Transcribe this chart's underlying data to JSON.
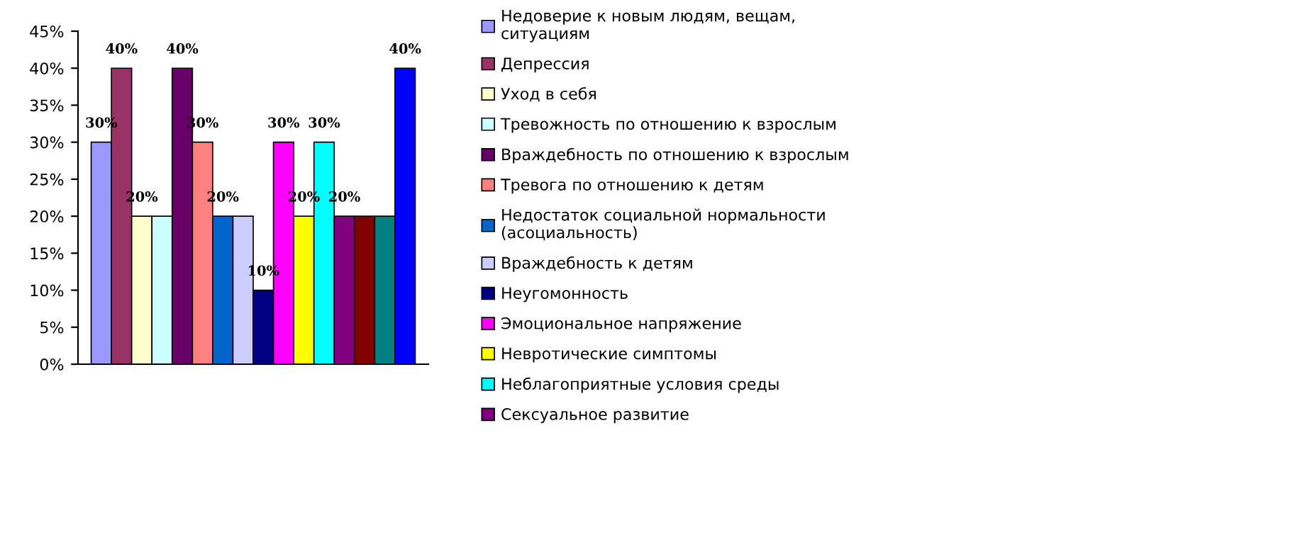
{
  "chart_data": {
    "type": "bar",
    "categories": [
      null
    ],
    "ylim": [
      0,
      45
    ],
    "yticks": [
      {
        "value": 0,
        "label": "0%"
      },
      {
        "value": 5,
        "label": "5%"
      },
      {
        "value": 10,
        "label": "10%"
      },
      {
        "value": 15,
        "label": "15%"
      },
      {
        "value": 20,
        "label": "20%"
      },
      {
        "value": 25,
        "label": "25%"
      },
      {
        "value": 30,
        "label": "30%"
      },
      {
        "value": 35,
        "label": "35%"
      },
      {
        "value": 40,
        "label": "40%"
      },
      {
        "value": 45,
        "label": "45%"
      }
    ],
    "grid": false,
    "legend": "right",
    "series": [
      {
        "name": "Недоверие к новым людям, вещам,\nситуациям",
        "color": "#9999ff",
        "values": [
          30
        ],
        "value_labels": [
          "30%"
        ]
      },
      {
        "name": "Депрессия",
        "color": "#993366",
        "values": [
          40
        ],
        "value_labels": [
          "40%"
        ]
      },
      {
        "name": "Уход в себя",
        "color": "#ffffcc",
        "values": [
          20
        ],
        "value_labels": [
          "20%"
        ]
      },
      {
        "name": "Тревожность по отношению к взрослым",
        "color": "#ccffff",
        "values": [
          20
        ],
        "value_labels": [
          null
        ]
      },
      {
        "name": "Враждебность по отношению к взрослым",
        "color": "#660066",
        "values": [
          40
        ],
        "value_labels": [
          "40%"
        ]
      },
      {
        "name": "Тревога по отношению к детям",
        "color": "#ff8080",
        "values": [
          30
        ],
        "value_labels": [
          "30%"
        ]
      },
      {
        "name": "Недостаток социальной нормальности\n(асоциальность)",
        "color": "#0066cc",
        "values": [
          20
        ],
        "value_labels": [
          "20%"
        ]
      },
      {
        "name": "Враждебность к детям",
        "color": "#ccccff",
        "values": [
          20
        ],
        "value_labels": [
          null
        ]
      },
      {
        "name": "Неугомонность",
        "color": "#000080",
        "values": [
          10
        ],
        "value_labels": [
          "10%"
        ]
      },
      {
        "name": "Эмоциональное напряжение",
        "color": "#ff00ff",
        "values": [
          30
        ],
        "value_labels": [
          "30%"
        ]
      },
      {
        "name": "Невротические симптомы",
        "color": "#ffff00",
        "values": [
          20
        ],
        "value_labels": [
          "20%"
        ]
      },
      {
        "name": "Неблагоприятные условия среды",
        "color": "#00ffff",
        "values": [
          30
        ],
        "value_labels": [
          "30%"
        ]
      },
      {
        "name": "Сексуальное развитие",
        "color": "#800080",
        "values": [
          20
        ],
        "value_labels": [
          "20%"
        ]
      },
      {
        "color": "#800000",
        "values": [
          20
        ],
        "value_labels": [
          null
        ]
      },
      {
        "color": "#008080",
        "values": [
          20
        ],
        "value_labels": [
          null
        ]
      },
      {
        "color": "#0000ff",
        "values": [
          40
        ],
        "value_labels": [
          "40%"
        ]
      }
    ]
  }
}
